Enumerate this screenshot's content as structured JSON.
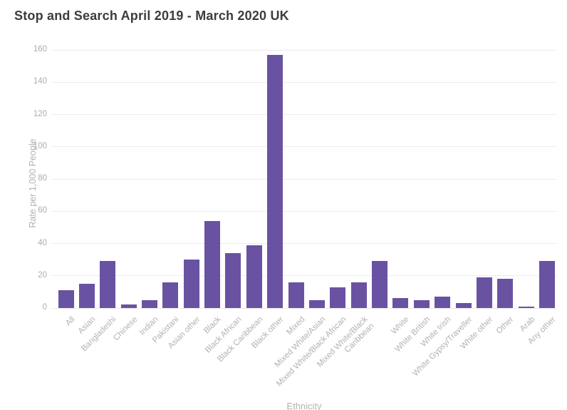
{
  "title": "Stop and Search April 2019 - March 2020 UK",
  "chart_data": {
    "type": "bar",
    "title": "Stop and Search April 2019 - March 2020 UK",
    "xlabel": "Ethnicity",
    "ylabel": "Rate per 1,000 People",
    "ylim": [
      0,
      160
    ],
    "yticks": [
      0,
      20,
      40,
      60,
      80,
      100,
      120,
      140,
      160
    ],
    "grid": true,
    "legend": "none",
    "bar_color": "#6a52a2",
    "categories": [
      "All",
      "Asian",
      "Bangladeshi",
      "Chinese",
      "Indian",
      "Pakistani",
      "Asian other",
      "Black",
      "Black African",
      "Black Caribbean",
      "Black other",
      "Mixed",
      "Mixed White/Asian",
      "Mixed White/Black African",
      "Mixed White/Black\nCaribbean",
      "",
      "White",
      "White British",
      "White Irish",
      "White Gypsy/Traveller",
      "White other",
      "Other",
      "Arab",
      "Any other"
    ],
    "values": [
      11,
      15,
      29,
      2,
      5,
      16,
      30,
      54,
      34,
      39,
      157,
      16,
      5,
      13,
      16,
      29,
      6,
      5,
      7,
      3,
      19,
      18,
      1,
      29
    ]
  },
  "colors": {
    "title_text": "#3c3c3c",
    "axis_text": "#b1b1b1",
    "gridline": "#ececec",
    "bar": "#6a52a2",
    "background": "#ffffff"
  }
}
